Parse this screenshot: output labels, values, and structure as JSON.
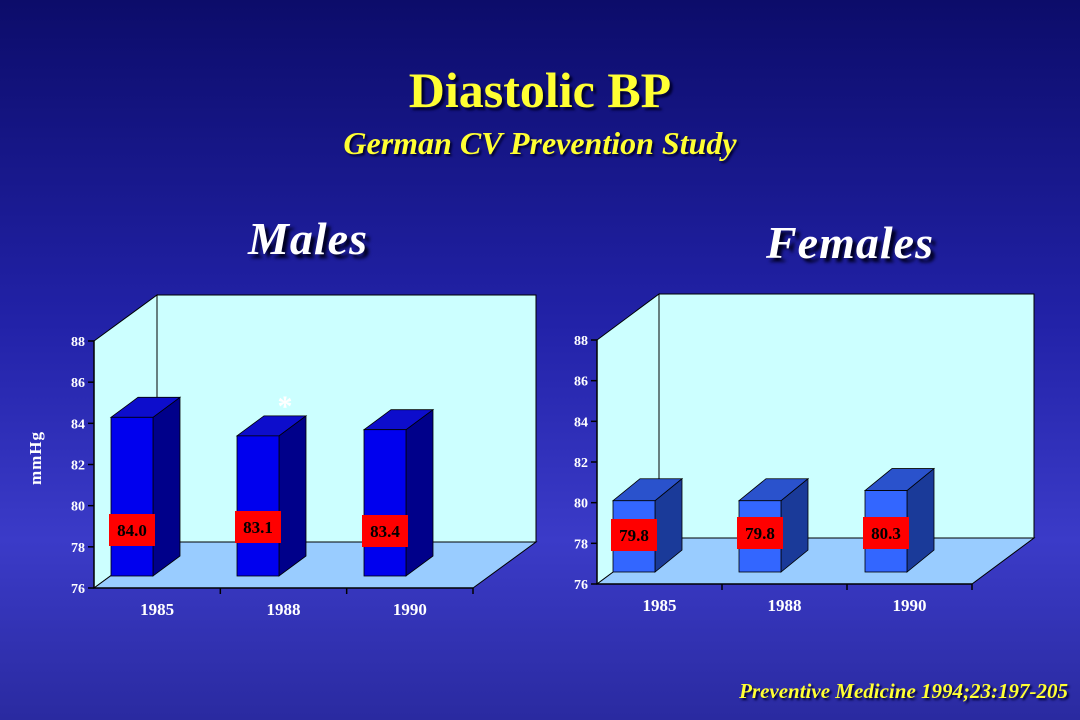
{
  "slide": {
    "title": "Diastolic BP",
    "subtitle": "German CV Prevention Study",
    "citation": "Preventive Medicine 1994;23:197-205"
  },
  "chart_data": [
    {
      "type": "bar",
      "title": "Males",
      "ylabel": "mmHg",
      "xlabel": "",
      "categories": [
        "1985",
        "1988",
        "1990"
      ],
      "values": [
        84.0,
        83.1,
        83.4
      ],
      "value_labels": [
        "84.0",
        "83.1",
        "83.4"
      ],
      "ylim": [
        76,
        88
      ],
      "yticks": [
        "76",
        "78",
        "80",
        "82",
        "84",
        "86",
        "88"
      ],
      "annotations": [
        {
          "category": "1988",
          "text": "*"
        }
      ],
      "colors": {
        "bar_front": "#0000ee",
        "bar_side": "#00008a",
        "bar_top": "#0d0dcc",
        "label_bg": "#ff0000",
        "wall": "#ccffff",
        "floor": "#99ccff"
      }
    },
    {
      "type": "bar",
      "title": "Females",
      "ylabel": "",
      "xlabel": "",
      "categories": [
        "1985",
        "1988",
        "1990"
      ],
      "values": [
        79.8,
        79.8,
        80.3
      ],
      "value_labels": [
        "79.8",
        "79.8",
        "80.3"
      ],
      "ylim": [
        76,
        88
      ],
      "yticks": [
        "76",
        "78",
        "80",
        "82",
        "84",
        "86",
        "88"
      ],
      "annotations": [],
      "colors": {
        "bar_front": "#3366ff",
        "bar_side": "#1a3a99",
        "bar_top": "#2a52cc",
        "label_bg": "#ff0000",
        "wall": "#ccffff",
        "floor": "#99ccff"
      }
    }
  ]
}
